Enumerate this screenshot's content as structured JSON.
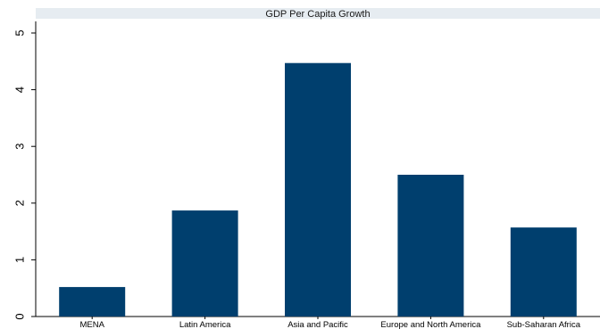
{
  "chart_data": {
    "type": "bar",
    "title": "GDP Per Capita Growth",
    "categories": [
      "MENA",
      "Latin America",
      "Asia and Pacific",
      "Europe and North America",
      "Sub-Saharan Africa"
    ],
    "values": [
      0.52,
      1.87,
      4.47,
      2.5,
      1.57
    ],
    "xlabel": "",
    "ylabel": "",
    "ylim": [
      0,
      5
    ],
    "yticks": [
      "0",
      "1",
      "2",
      "3",
      "4",
      "5"
    ],
    "grid": false,
    "bar_color": "#003f6e",
    "title_band_color": "#e6ecf1"
  }
}
